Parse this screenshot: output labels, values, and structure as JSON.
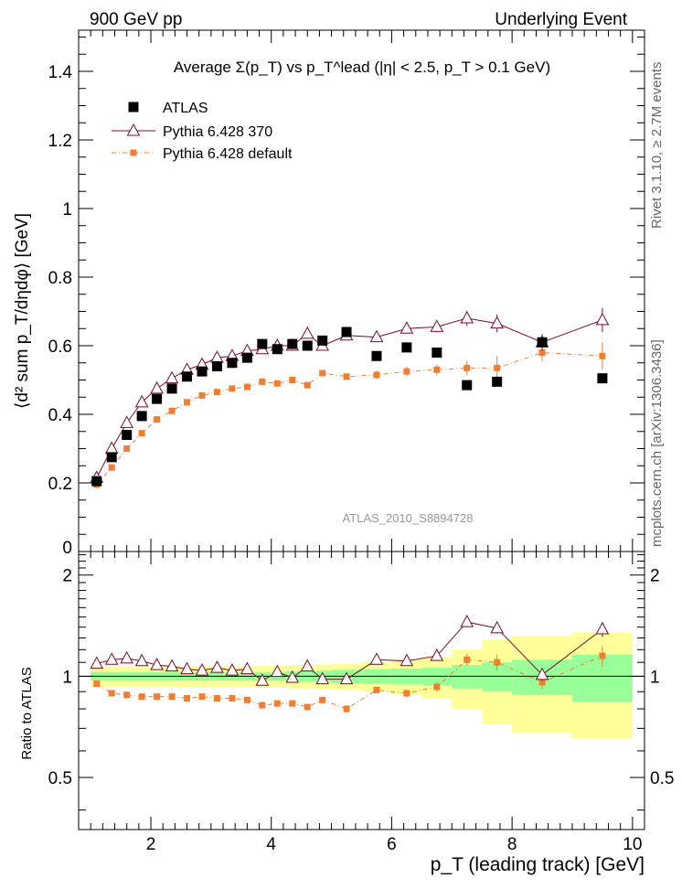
{
  "header": {
    "left": "900 GeV pp",
    "right": "Underlying Event"
  },
  "side_labels": {
    "right_top": "Rivet 3.1.10, ≥ 2.7M events",
    "right_bottom": "mcplots.cern.ch [arXiv:1306.3436]"
  },
  "chart_data": {
    "type": "scatter",
    "title": "Average Σ(p_T) vs p_T^lead (|η| < 2.5, p_T > 0.1 GeV)",
    "watermark": "ATLAS_2010_S8894728",
    "xlabel": "p_T (leading track) [GeV]",
    "ylabel": "⟨d² sum p_T/dηdφ⟩ [GeV]",
    "ratio_ylabel": "Ratio to ATLAS",
    "xlim": [
      0.8,
      10.2
    ],
    "ylim": [
      0,
      1.52
    ],
    "ratio_ylim": [
      0.35,
      2.35
    ],
    "x_ticks": [
      "2",
      "4",
      "6",
      "8",
      "10"
    ],
    "y_ticks": [
      "0",
      "0.2",
      "0.4",
      "0.6",
      "0.8",
      "1",
      "1.2",
      "1.4"
    ],
    "ratio_ticks": [
      "0.5",
      "1",
      "2"
    ],
    "legend_position": "top-left",
    "x": [
      1.1,
      1.35,
      1.6,
      1.85,
      2.1,
      2.35,
      2.6,
      2.85,
      3.1,
      3.35,
      3.6,
      3.85,
      4.1,
      4.35,
      4.6,
      4.85,
      5.25,
      5.75,
      6.25,
      6.75,
      7.25,
      7.75,
      8.5,
      9.5
    ],
    "series": [
      {
        "name": "ATLAS",
        "marker": "filled-square",
        "color": "#000000",
        "values": [
          0.205,
          0.275,
          0.34,
          0.395,
          0.445,
          0.475,
          0.51,
          0.525,
          0.54,
          0.55,
          0.565,
          0.605,
          0.59,
          0.605,
          0.6,
          0.615,
          0.64,
          0.57,
          0.595,
          0.58,
          0.485,
          0.495,
          0.61,
          0.505
        ]
      },
      {
        "name": "Pythia 6.428 370",
        "marker": "open-triangle",
        "color": "#7a0a2a",
        "values": [
          0.215,
          0.3,
          0.375,
          0.435,
          0.475,
          0.505,
          0.53,
          0.545,
          0.565,
          0.57,
          0.585,
          0.59,
          0.6,
          0.6,
          0.635,
          0.6,
          0.63,
          0.625,
          0.65,
          0.655,
          0.68,
          0.665,
          0.61,
          0.675
        ],
        "errors": [
          0.003,
          0.003,
          0.004,
          0.004,
          0.004,
          0.005,
          0.005,
          0.005,
          0.006,
          0.006,
          0.006,
          0.007,
          0.007,
          0.008,
          0.008,
          0.009,
          0.01,
          0.012,
          0.014,
          0.016,
          0.022,
          0.026,
          0.024,
          0.035
        ],
        "ratio": [
          1.09,
          1.12,
          1.13,
          1.11,
          1.08,
          1.07,
          1.05,
          1.04,
          1.06,
          1.04,
          1.05,
          0.97,
          1.03,
          0.99,
          1.07,
          0.98,
          0.98,
          1.12,
          1.11,
          1.15,
          1.45,
          1.39,
          1.01,
          1.38
        ],
        "ratio_errors": [
          0.015,
          0.015,
          0.015,
          0.015,
          0.015,
          0.015,
          0.015,
          0.015,
          0.015,
          0.015,
          0.015,
          0.015,
          0.015,
          0.02,
          0.02,
          0.02,
          0.02,
          0.025,
          0.025,
          0.03,
          0.05,
          0.05,
          0.04,
          0.07
        ]
      },
      {
        "name": "Pythia 6.428 default",
        "marker": "filled-small-square",
        "color": "#f07d30",
        "values": [
          0.195,
          0.245,
          0.3,
          0.345,
          0.385,
          0.41,
          0.435,
          0.455,
          0.465,
          0.475,
          0.48,
          0.495,
          0.49,
          0.5,
          0.485,
          0.52,
          0.51,
          0.515,
          0.525,
          0.53,
          0.535,
          0.535,
          0.58,
          0.57
        ],
        "errors": [
          0.003,
          0.003,
          0.004,
          0.004,
          0.004,
          0.005,
          0.005,
          0.005,
          0.006,
          0.006,
          0.006,
          0.007,
          0.007,
          0.008,
          0.008,
          0.009,
          0.01,
          0.012,
          0.014,
          0.016,
          0.02,
          0.035,
          0.025,
          0.04
        ],
        "ratio": [
          0.95,
          0.89,
          0.88,
          0.87,
          0.87,
          0.87,
          0.86,
          0.87,
          0.86,
          0.86,
          0.85,
          0.82,
          0.83,
          0.83,
          0.81,
          0.85,
          0.8,
          0.91,
          0.89,
          0.93,
          1.12,
          1.1,
          0.96,
          1.15
        ],
        "ratio_errors": [
          0.01,
          0.01,
          0.01,
          0.01,
          0.01,
          0.01,
          0.01,
          0.01,
          0.01,
          0.01,
          0.01,
          0.01,
          0.01,
          0.015,
          0.015,
          0.015,
          0.02,
          0.02,
          0.025,
          0.03,
          0.045,
          0.06,
          0.045,
          0.08
        ]
      }
    ],
    "bands": {
      "bin_edges": [
        1.0,
        1.25,
        1.5,
        1.75,
        2.0,
        2.25,
        2.5,
        2.75,
        3.0,
        3.25,
        3.5,
        3.75,
        4.0,
        4.25,
        4.5,
        4.75,
        5.0,
        5.5,
        6.0,
        6.5,
        7.0,
        7.5,
        8.0,
        9.0,
        10.0
      ],
      "stat_hw": [
        0.03,
        0.03,
        0.03,
        0.03,
        0.03,
        0.03,
        0.03,
        0.03,
        0.03,
        0.03,
        0.03,
        0.03,
        0.03,
        0.035,
        0.035,
        0.04,
        0.045,
        0.05,
        0.055,
        0.06,
        0.08,
        0.1,
        0.12,
        0.16
      ],
      "total_hw": [
        0.07,
        0.07,
        0.07,
        0.07,
        0.07,
        0.07,
        0.07,
        0.07,
        0.07,
        0.07,
        0.07,
        0.075,
        0.075,
        0.08,
        0.08,
        0.085,
        0.09,
        0.1,
        0.12,
        0.14,
        0.2,
        0.28,
        0.32,
        0.35
      ],
      "stat_color": "#99ff99",
      "total_color": "#ffff99"
    }
  }
}
